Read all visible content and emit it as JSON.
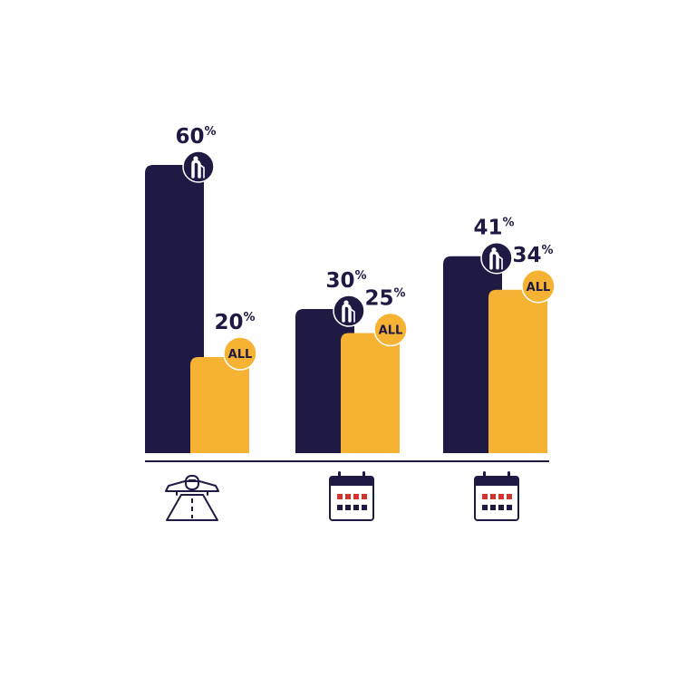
{
  "colors": {
    "seniors": "#1f1a43",
    "all": "#f6b333",
    "baseline": "#1f1a43",
    "calendar_dots_red": "#d0342c",
    "calendar_dots_dark": "#1f1a43"
  },
  "chart_data": {
    "type": "bar",
    "categories": [
      "airplane-runway-icon",
      "calendar-icon",
      "calendar-icon"
    ],
    "series": [
      {
        "values": [
          60,
          30,
          41
        ],
        "marker_icon": "elderly-person-with-cane-icon"
      },
      {
        "values": [
          20,
          25,
          34
        ],
        "marker_label": "ALL"
      }
    ],
    "unit": "%",
    "ylim": [
      0,
      60
    ],
    "grid": false,
    "legend": "none"
  }
}
